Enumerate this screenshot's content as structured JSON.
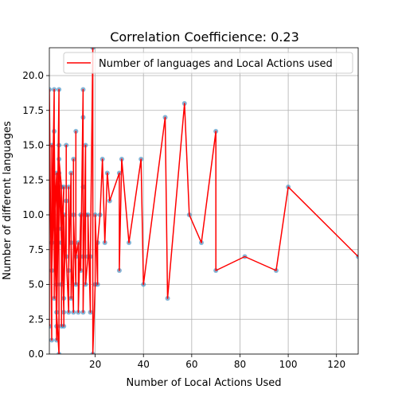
{
  "chart_data": {
    "type": "line",
    "title": "Correlation Coefficience: 0.23",
    "xlabel": "Number of Local Actions Used",
    "ylabel": "Number of different languages",
    "xlim": [
      1,
      129
    ],
    "ylim": [
      0,
      22
    ],
    "x_ticks": [
      "20",
      "40",
      "60",
      "80",
      "100",
      "120"
    ],
    "x_tick_values": [
      20,
      40,
      60,
      80,
      100,
      120
    ],
    "y_ticks": [
      "0.0",
      "2.5",
      "5.0",
      "7.5",
      "10.0",
      "12.5",
      "15.0",
      "17.5",
      "20.0"
    ],
    "y_tick_values": [
      0,
      2.5,
      5,
      7.5,
      10,
      12.5,
      15,
      17.5,
      20
    ],
    "grid": true,
    "legend_position": "top-right",
    "series": [
      {
        "name": "Number of languages and Local Actions used",
        "line_color": "#ff0000",
        "marker_color": "#1f77b4",
        "points": [
          [
            1,
            2
          ],
          [
            1,
            19
          ],
          [
            2,
            1
          ],
          [
            2,
            15
          ],
          [
            2,
            8
          ],
          [
            3,
            19
          ],
          [
            3,
            4
          ],
          [
            3,
            12
          ],
          [
            2,
            6
          ],
          [
            3,
            16
          ],
          [
            4,
            1
          ],
          [
            4,
            13
          ],
          [
            3,
            9
          ],
          [
            4,
            3
          ],
          [
            5,
            0
          ],
          [
            5,
            19
          ],
          [
            4,
            5
          ],
          [
            5,
            11
          ],
          [
            5,
            15
          ],
          [
            4,
            2
          ],
          [
            5,
            13
          ],
          [
            6,
            8
          ],
          [
            6,
            2
          ],
          [
            6,
            12
          ],
          [
            5,
            14
          ],
          [
            7,
            3
          ],
          [
            6,
            9
          ],
          [
            7,
            12
          ],
          [
            6,
            5
          ],
          [
            7,
            10
          ],
          [
            7,
            2
          ],
          [
            7,
            4
          ],
          [
            8,
            11
          ],
          [
            8,
            15
          ],
          [
            8,
            7
          ],
          [
            9,
            3
          ],
          [
            9,
            12
          ],
          [
            9,
            6
          ],
          [
            10,
            13
          ],
          [
            10,
            4
          ],
          [
            10,
            8
          ],
          [
            11,
            3
          ],
          [
            11,
            14
          ],
          [
            11,
            10
          ],
          [
            12,
            5
          ],
          [
            12,
            16
          ],
          [
            12,
            7
          ],
          [
            13,
            8
          ],
          [
            13,
            3
          ],
          [
            14,
            10
          ],
          [
            14,
            6
          ],
          [
            15,
            19
          ],
          [
            15,
            7
          ],
          [
            15,
            17
          ],
          [
            15,
            12
          ],
          [
            15,
            3
          ],
          [
            16,
            15
          ],
          [
            16,
            10
          ],
          [
            16,
            5
          ],
          [
            17,
            7
          ],
          [
            17,
            10
          ],
          [
            18,
            3
          ],
          [
            18,
            7
          ],
          [
            19,
            22
          ],
          [
            19,
            0
          ],
          [
            20,
            5
          ],
          [
            20,
            10
          ],
          [
            21,
            5
          ],
          [
            21,
            8
          ],
          [
            22,
            10
          ],
          [
            23,
            14
          ],
          [
            24,
            8
          ],
          [
            25,
            13
          ],
          [
            26,
            11
          ],
          [
            30,
            13
          ],
          [
            30,
            6
          ],
          [
            31,
            14
          ],
          [
            34,
            8
          ],
          [
            39,
            14
          ],
          [
            40,
            5
          ],
          [
            49,
            17
          ],
          [
            50,
            4
          ],
          [
            57,
            18
          ],
          [
            59,
            10
          ],
          [
            64,
            8
          ],
          [
            70,
            16
          ],
          [
            70,
            6
          ],
          [
            82,
            7
          ],
          [
            95,
            6
          ],
          [
            100,
            12
          ],
          [
            129,
            7
          ]
        ]
      }
    ]
  }
}
